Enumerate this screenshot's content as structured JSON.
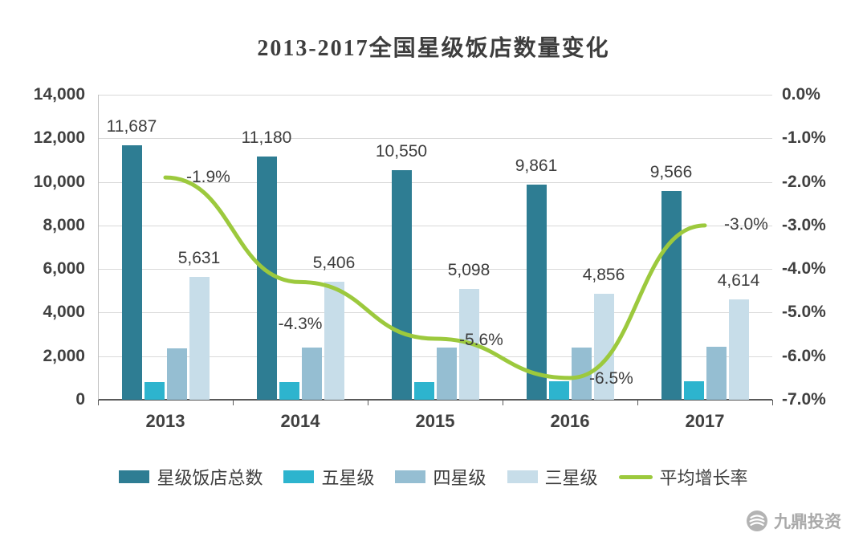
{
  "chart_data": {
    "type": "bar+line",
    "title": "2013-2017全国星级饭店数量变化",
    "categories": [
      "2013",
      "2014",
      "2015",
      "2016",
      "2017"
    ],
    "bar_series": [
      {
        "name": "星级饭店总数",
        "color": "#2e7d93",
        "values": [
          11687,
          11180,
          10550,
          9861,
          9566
        ],
        "labels": [
          "11,687",
          "11,180",
          "10,550",
          "9,861",
          "9,566"
        ]
      },
      {
        "name": "五星级",
        "color": "#2db4ce",
        "values": [
          800,
          810,
          820,
          830,
          840
        ],
        "labels": null
      },
      {
        "name": "四星级",
        "color": "#95bed2",
        "values": [
          2360,
          2380,
          2390,
          2400,
          2420
        ],
        "labels": null
      },
      {
        "name": "三星级",
        "color": "#c7dde9",
        "values": [
          5631,
          5406,
          5098,
          4856,
          4614
        ],
        "labels": [
          "5,631",
          "5,406",
          "5,098",
          "4,856",
          "4,614"
        ]
      }
    ],
    "line_series": {
      "name": "平均增长率",
      "color": "#9cc93d",
      "values": [
        -1.9,
        -4.3,
        -5.6,
        -6.5,
        -3.0
      ],
      "labels": [
        "-1.9%",
        "-4.3%",
        "-5.6%",
        "-6.5%",
        "-3.0%"
      ]
    },
    "left_axis": {
      "min": 0,
      "max": 14000,
      "step": 2000,
      "tick_labels": [
        "0",
        "2,000",
        "4,000",
        "6,000",
        "8,000",
        "10,000",
        "12,000",
        "14,000"
      ]
    },
    "right_axis": {
      "min": -7,
      "max": 0,
      "step": 1,
      "tick_labels_top_down": [
        "0.0%",
        "-1.0%",
        "-2.0%",
        "-3.0%",
        "-4.0%",
        "-5.0%",
        "-6.0%",
        "-7.0%"
      ]
    },
    "legend_position": "bottom",
    "grid": true
  },
  "logo": {
    "text": "九鼎投资"
  }
}
